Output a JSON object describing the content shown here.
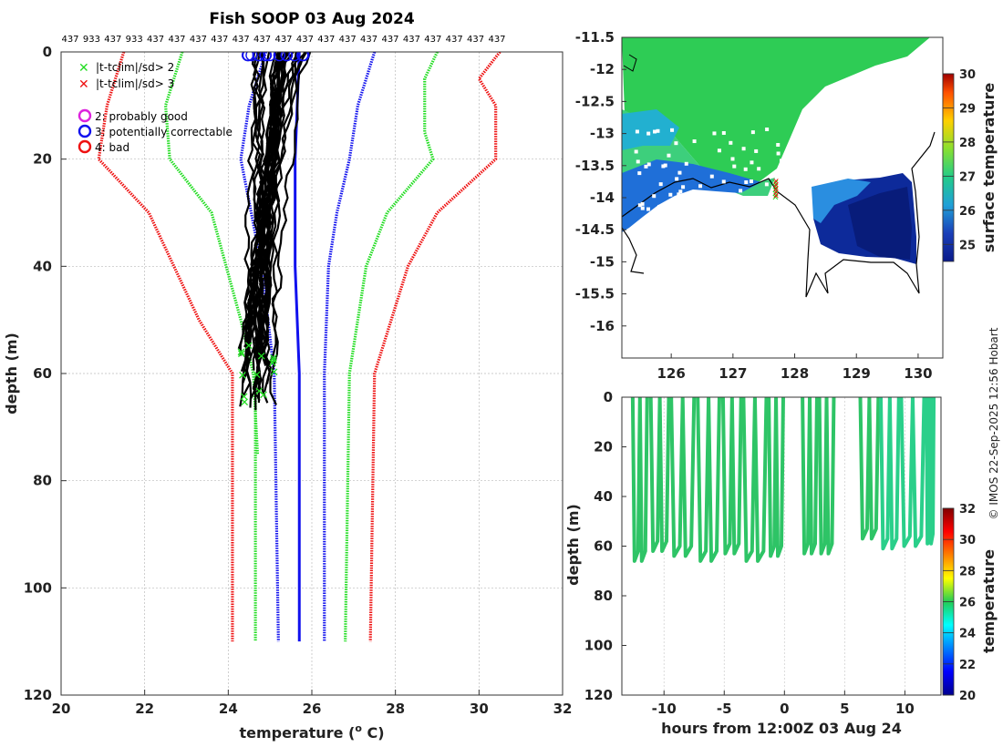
{
  "chart_data": [
    {
      "type": "line",
      "panel": "profiles",
      "title": "Fish SOOP 03 Aug 2024",
      "xlabel": "temperature (",
      "xlabel_sup": "o",
      "xlabel_end": " C)",
      "ylabel": "depth (m)",
      "xlim": [
        20,
        32
      ],
      "ylim": [
        0,
        120
      ],
      "xticks": [
        20,
        22,
        24,
        26,
        28,
        30,
        32
      ],
      "yticks": [
        0,
        20,
        40,
        60,
        80,
        100,
        120
      ],
      "top_labels": [
        "437",
        "933",
        "437",
        "933",
        "437",
        "437",
        "437",
        "437",
        "437",
        "437",
        "437",
        "437",
        "437",
        "437",
        "437",
        "437",
        "437",
        "437",
        "437",
        "437",
        "437"
      ],
      "legend": [
        {
          "marker": "x",
          "color": "#22dd22",
          "label": "|t-tclim|/sd> 2"
        },
        {
          "marker": "x",
          "color": "#ee1111",
          "label": "|t-tclim|/sd> 3"
        },
        {
          "marker": "o",
          "color": "#dd22dd",
          "label": "2: probably good"
        },
        {
          "marker": "o",
          "color": "#1111ee",
          "label": "3: potentially correctable"
        },
        {
          "marker": "o",
          "color": "#ee1111",
          "label": "4: bad"
        }
      ],
      "climatology": [
        {
          "name": "red-left",
          "color": "#ee1111",
          "depth": [
            0,
            5,
            10,
            20,
            30,
            50,
            60,
            110
          ],
          "temp": [
            21.5,
            21.3,
            21.1,
            20.9,
            22.1,
            23.3,
            24.1,
            24.1
          ]
        },
        {
          "name": "green-left",
          "color": "#22dd22",
          "depth": [
            0,
            5,
            10,
            20,
            30,
            50,
            60,
            75
          ],
          "temp": [
            22.9,
            22.7,
            22.5,
            22.6,
            23.6,
            24.3,
            24.6,
            24.7
          ]
        },
        {
          "name": "green-left-deep",
          "color": "#22dd22",
          "depth": [
            60,
            110
          ],
          "temp": [
            24.65,
            24.65
          ]
        },
        {
          "name": "blue-left",
          "color": "#1111ee",
          "depth": [
            0,
            5,
            10,
            20,
            40,
            60,
            110
          ],
          "temp": [
            24.9,
            24.7,
            24.5,
            24.3,
            24.8,
            25.1,
            25.2
          ]
        },
        {
          "name": "blue-mean",
          "color": "#1111ee",
          "depth": [
            0,
            20,
            40,
            60,
            110
          ],
          "temp": [
            25.7,
            25.6,
            25.6,
            25.7,
            25.7
          ]
        },
        {
          "name": "blue-right",
          "color": "#1111ee",
          "depth": [
            0,
            10,
            20,
            30,
            40,
            60,
            110
          ],
          "temp": [
            27.5,
            27.1,
            26.9,
            26.6,
            26.4,
            26.3,
            26.3
          ]
        },
        {
          "name": "green-right",
          "color": "#22dd22",
          "depth": [
            0,
            5,
            15,
            20,
            30,
            40,
            60,
            110
          ],
          "temp": [
            29.0,
            28.7,
            28.7,
            28.9,
            27.8,
            27.3,
            26.9,
            26.8
          ]
        },
        {
          "name": "red-right",
          "color": "#ee1111",
          "depth": [
            0,
            5,
            10,
            20,
            30,
            40,
            60,
            110
          ],
          "temp": [
            30.5,
            30.0,
            30.4,
            30.4,
            29.0,
            28.3,
            27.5,
            27.4
          ]
        }
      ],
      "profiles": {
        "color": "#000000",
        "count": 30,
        "surface_temp_range": [
          24.6,
          26.0
        ],
        "bottom_depth_range": [
          55,
          67
        ],
        "bottom_temp_range": [
          24.3,
          25.1
        ]
      }
    },
    {
      "type": "heatmap",
      "panel": "map",
      "colorbar_label": "surface temperature",
      "xlim": [
        125.2,
        130.4
      ],
      "ylim": [
        -16.5,
        -11.5
      ],
      "xticks": [
        126,
        127,
        128,
        129,
        130
      ],
      "yticks": [
        -11.5,
        -12,
        -12.5,
        -13,
        -13.5,
        -14,
        -14.5,
        -15,
        -15.5,
        -16
      ],
      "clim": [
        24.5,
        30
      ],
      "cticks": [
        25,
        26,
        27,
        28,
        29,
        30
      ],
      "cruise_position": {
        "lon": 127.7,
        "lat": -13.9
      },
      "sst_regions": [
        "warm-green-north",
        "cool-blue-shelf",
        "cold-deep-blue-gulf"
      ]
    },
    {
      "type": "scatter",
      "panel": "depth-time",
      "xlabel": "hours from 12:00Z 03 Aug 24",
      "ylabel": "depth (m)",
      "colorbar_label": "temperature",
      "xlim": [
        -13.5,
        13
      ],
      "ylim": [
        0,
        120
      ],
      "xticks": [
        -10,
        -5,
        0,
        5,
        10
      ],
      "yticks": [
        0,
        20,
        40,
        60,
        80,
        100,
        120
      ],
      "clim": [
        20,
        32
      ],
      "cticks": [
        20,
        22,
        24,
        26,
        28,
        30,
        32
      ],
      "tows": [
        {
          "start": -12.6,
          "end": -11.4,
          "max_depth": 66
        },
        {
          "start": -11.1,
          "end": -9.6,
          "max_depth": 62
        },
        {
          "start": -9.4,
          "end": -7.5,
          "max_depth": 64
        },
        {
          "start": -7.2,
          "end": -5.4,
          "max_depth": 66
        },
        {
          "start": -5.1,
          "end": -3.6,
          "max_depth": 63
        },
        {
          "start": -3.4,
          "end": -1.5,
          "max_depth": 66
        },
        {
          "start": -1.3,
          "end": -0.1,
          "max_depth": 64
        },
        {
          "start": 1.5,
          "end": 2.7,
          "max_depth": 63
        },
        {
          "start": 2.9,
          "end": 4.1,
          "max_depth": 63
        },
        {
          "start": 6.3,
          "end": 7.8,
          "max_depth": 57
        },
        {
          "start": 8.0,
          "end": 9.5,
          "max_depth": 61
        },
        {
          "start": 9.7,
          "end": 11.6,
          "max_depth": 60
        },
        {
          "start": 11.8,
          "end": 12.4,
          "max_depth": 59
        }
      ]
    }
  ],
  "credit": "© IMOS 22-Sep-2025 12:56 Hobart"
}
